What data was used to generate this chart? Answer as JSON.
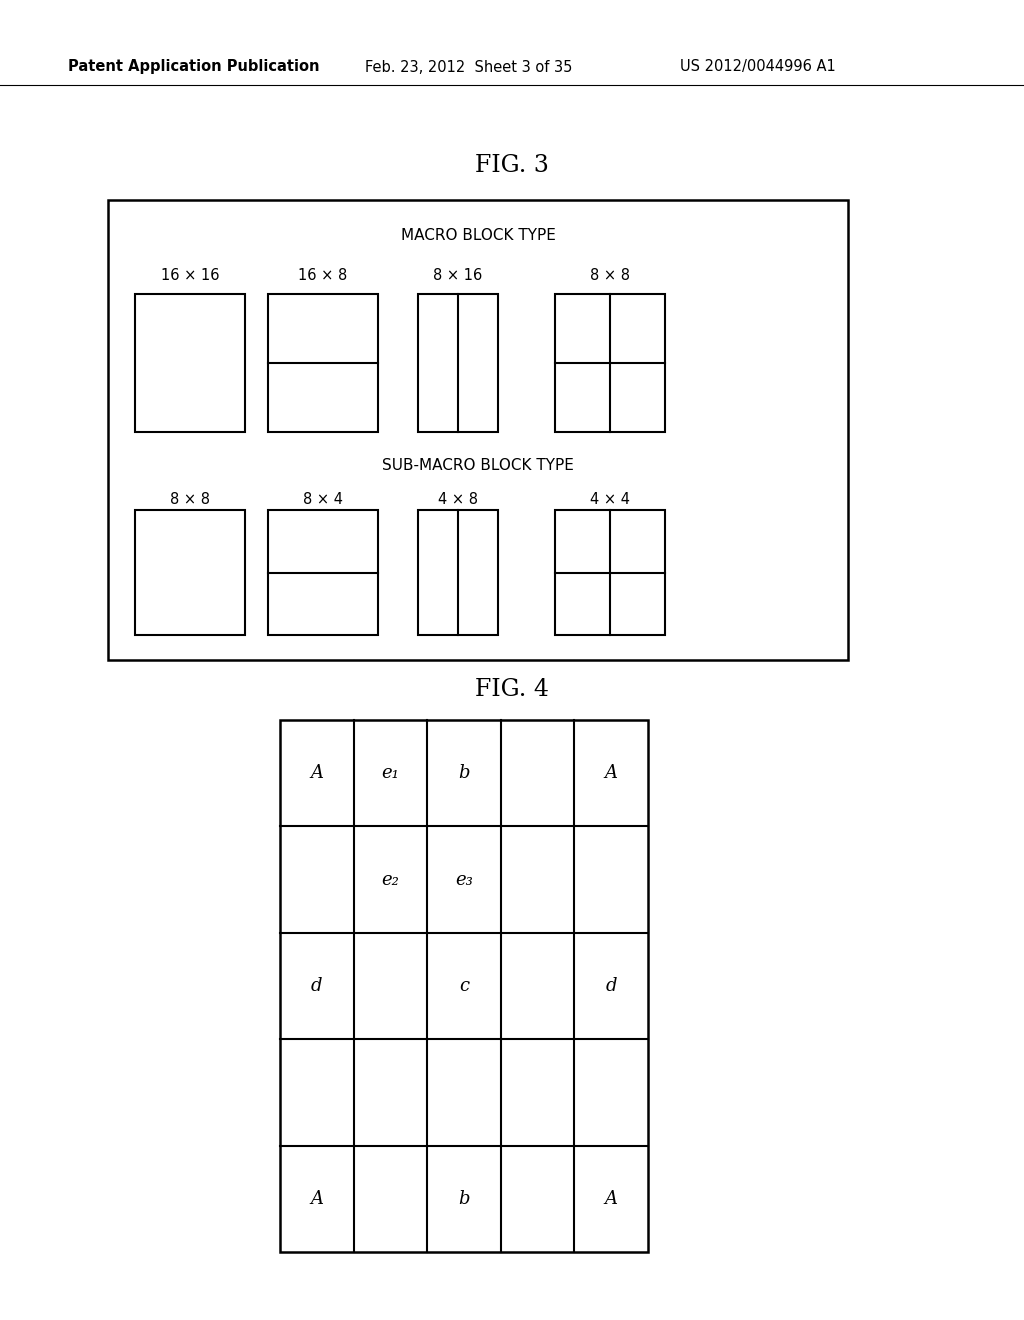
{
  "background_color": "#ffffff",
  "header_text": "Patent Application Publication",
  "header_date": "Feb. 23, 2012  Sheet 3 of 35",
  "header_patent": "US 2012/0044996 A1",
  "fig3_title": "FIG. 3",
  "fig4_title": "FIG. 4",
  "macro_block_label": "MACRO BLOCK TYPE",
  "sub_macro_block_label": "SUB-MACRO BLOCK TYPE",
  "macro_labels": [
    "16 × 16",
    "16 × 8",
    "8 × 16",
    "8 × 8"
  ],
  "sub_macro_labels": [
    "8 × 8",
    "8 × 4",
    "4 × 8",
    "4 × 4"
  ],
  "grid4_labels": [
    [
      "A",
      "e₁",
      "b",
      "",
      "A"
    ],
    [
      "",
      "e₂",
      "e₃",
      "",
      ""
    ],
    [
      "d",
      "",
      "c",
      "",
      "d"
    ],
    [
      "",
      "",
      "",
      "",
      ""
    ],
    [
      "A",
      "",
      "b",
      "",
      "A"
    ]
  ],
  "text_color": "#000000",
  "line_color": "#000000",
  "header_fontsize": 10.5,
  "fig_title_fontsize": 17,
  "label_fontsize": 10.5,
  "block_label_fontsize": 11,
  "grid_label_fontsize": 13
}
